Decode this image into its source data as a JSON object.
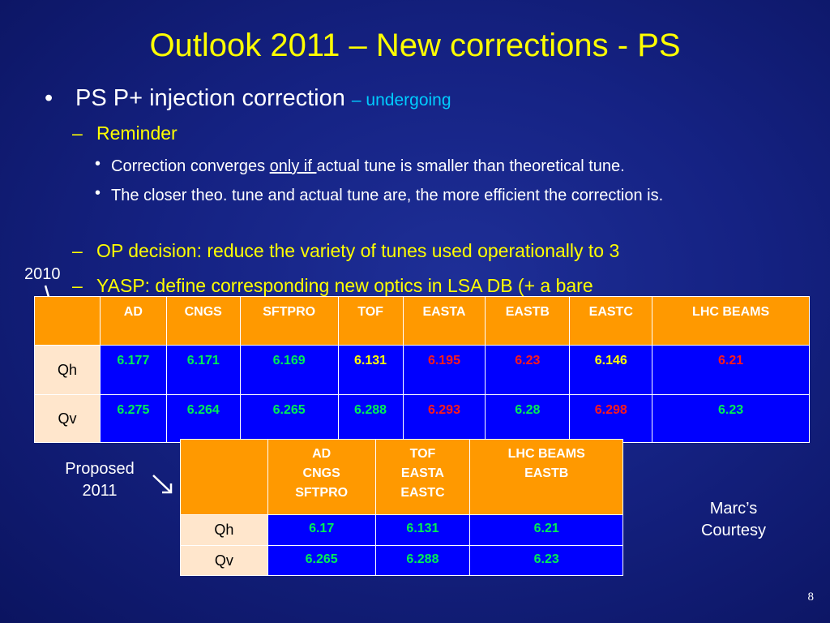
{
  "slide": {
    "title": "Outlook 2011 – New corrections - PS",
    "bullet1": {
      "text": "PS P+ injection correction ",
      "status": "– undergoing"
    },
    "reminder": "Reminder",
    "sub1": {
      "pre": "Correction converges ",
      "underline": "only if ",
      "post": "actual tune is smaller than theoretical tune."
    },
    "sub2": "The closer theo. tune and actual tune are, the more efficient the correction is.",
    "op_decision": "OP decision: reduce the variety of tunes used operationally to 3",
    "yasp": "YASP: define corresponding new optics in LSA DB (+ a bare",
    "label_2010": "2010",
    "label_proposed": "Proposed",
    "label_2011": "2011",
    "marc1": "Marc’s",
    "marc2": "Courtesy",
    "page_number": "8"
  },
  "table_2010": {
    "headers": [
      "AD",
      "CNGS",
      "SFTPRO",
      "TOF",
      "EASTA",
      "EASTB",
      "EASTC",
      "LHC BEAMS"
    ],
    "rows": [
      {
        "label": "Qh",
        "values": [
          "6.177",
          "6.171",
          "6.169",
          "6.131",
          "6.195",
          "6.23",
          "6.146",
          "6.21"
        ]
      },
      {
        "label": "Qv",
        "values": [
          "6.275",
          "6.264",
          "6.265",
          "6.288",
          "6.293",
          "6.28",
          "6.298",
          "6.23"
        ]
      }
    ],
    "value_colors": {
      "green": "#00ee55",
      "yellow": "#ffff00",
      "red": "#ff1a1a"
    }
  },
  "table_2011": {
    "headers": [
      [
        "AD",
        "CNGS",
        "SFTPRO"
      ],
      [
        "TOF",
        "EASTA",
        "EASTC"
      ],
      [
        "LHC BEAMS",
        "EASTB"
      ]
    ],
    "rows": [
      {
        "label": "Qh",
        "values": [
          "6.17",
          "6.131",
          "6.21"
        ]
      },
      {
        "label": "Qv",
        "values": [
          "6.265",
          "6.288",
          "6.23"
        ]
      }
    ]
  },
  "colors": {
    "background": "#152283",
    "title": "#ffff00",
    "status": "#00ccff",
    "header_cell": "#ff9900",
    "row_label_cell": "#ffe6cc",
    "value_cell": "#0000ff"
  }
}
